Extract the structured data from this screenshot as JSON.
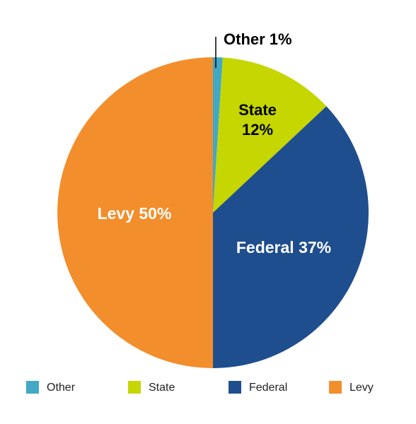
{
  "chart_data": {
    "type": "pie",
    "title": "",
    "start_angle": "12 o'clock, clockwise",
    "slices": [
      {
        "name": "Other",
        "value": 1,
        "label": "Other 1%",
        "color": "#41A8C6",
        "label_color": "#000000",
        "label_placement": "outside-leader"
      },
      {
        "name": "State",
        "value": 12,
        "label": "State\n12%",
        "color": "#C5D600",
        "label_color": "#000000",
        "label_placement": "inside"
      },
      {
        "name": "Federal",
        "value": 37,
        "label": "Federal 37%",
        "color": "#1F4E8F",
        "label_color": "#FFFFFF",
        "label_placement": "inside"
      },
      {
        "name": "Levy",
        "value": 50,
        "label": "Levy 50%",
        "color": "#F28E2B",
        "label_color": "#FFFFFF",
        "label_placement": "inside"
      }
    ],
    "legend": {
      "placement": "bottom",
      "entries": [
        "Other",
        "State",
        "Federal",
        "Levy"
      ]
    }
  }
}
